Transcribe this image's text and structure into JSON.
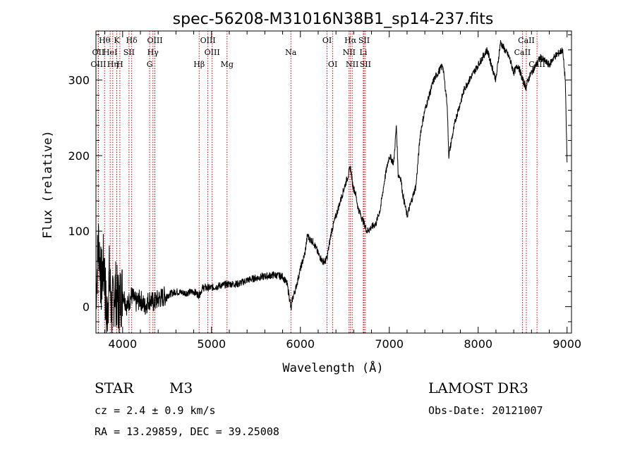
{
  "chart_data": {
    "type": "line",
    "title": "spec-56208-M31016N38B1_sp14-237.fits",
    "xlabel": "Wavelength (Å)",
    "ylabel": "Flux (relative)",
    "xlim": [
      3700,
      9050
    ],
    "ylim": [
      -35,
      365
    ],
    "xticks": [
      4000,
      5000,
      6000,
      7000,
      8000,
      9000
    ],
    "yticks": [
      0,
      100,
      200,
      300
    ],
    "xtick_labels": [
      "4000",
      "5000",
      "6000",
      "7000",
      "8000",
      "9000"
    ],
    "ytick_labels": [
      "0",
      "100",
      "200",
      "300"
    ],
    "spectrum": {
      "x": [
        3700,
        3730,
        3760,
        3790,
        3820,
        3850,
        3880,
        3910,
        3950,
        4000,
        4050,
        4100,
        4150,
        4200,
        4250,
        4300,
        4350,
        4400,
        4500,
        4600,
        4700,
        4800,
        4860,
        4900,
        5000,
        5100,
        5200,
        5300,
        5400,
        5500,
        5600,
        5700,
        5800,
        5850,
        5880,
        5895,
        5910,
        5950,
        6000,
        6050,
        6080,
        6100,
        6150,
        6200,
        6250,
        6280,
        6300,
        6350,
        6400,
        6450,
        6500,
        6540,
        6563,
        6590,
        6620,
        6650,
        6700,
        6750,
        6800,
        6850,
        6900,
        6950,
        7000,
        7050,
        7080,
        7100,
        7130,
        7150,
        7200,
        7250,
        7300,
        7350,
        7400,
        7450,
        7500,
        7550,
        7600,
        7650,
        7670,
        7700,
        7750,
        7800,
        7850,
        7900,
        7950,
        8000,
        8050,
        8100,
        8150,
        8200,
        8250,
        8300,
        8350,
        8400,
        8450,
        8500,
        8540,
        8560,
        8600,
        8650,
        8700,
        8750,
        8800,
        8850,
        8900,
        8950,
        8980,
        9000
      ],
      "y": [
        20,
        90,
        30,
        60,
        -20,
        40,
        -10,
        25,
        5,
        20,
        0,
        15,
        5,
        10,
        0,
        10,
        5,
        10,
        15,
        20,
        18,
        20,
        15,
        25,
        25,
        28,
        30,
        30,
        35,
        38,
        40,
        42,
        40,
        30,
        10,
        -5,
        10,
        25,
        50,
        70,
        95,
        90,
        85,
        70,
        60,
        60,
        65,
        100,
        120,
        140,
        160,
        175,
        185,
        160,
        150,
        130,
        115,
        100,
        105,
        110,
        130,
        170,
        200,
        190,
        240,
        175,
        170,
        150,
        120,
        140,
        160,
        230,
        260,
        280,
        300,
        310,
        320,
        270,
        200,
        220,
        250,
        270,
        290,
        300,
        310,
        320,
        330,
        340,
        320,
        300,
        350,
        340,
        330,
        310,
        320,
        300,
        290,
        300,
        310,
        320,
        330,
        325,
        320,
        330,
        335,
        340,
        300,
        190
      ]
    },
    "spectral_lines": [
      {
        "label": "Hθ",
        "x": 3797,
        "row": 1
      },
      {
        "label": "OII",
        "x": 3727,
        "row": 2
      },
      {
        "label": "OIII",
        "x": 3727,
        "row": 3
      },
      {
        "label": "HeI",
        "x": 3860,
        "row": 2
      },
      {
        "label": "Hη",
        "x": 3889,
        "row": 3
      },
      {
        "label": "K",
        "x": 3934,
        "row": 1
      },
      {
        "label": "H",
        "x": 3969,
        "row": 3
      },
      {
        "label": "SII",
        "x": 4072,
        "row": 2
      },
      {
        "label": "Hδ",
        "x": 4102,
        "row": 1
      },
      {
        "label": "OIII",
        "x": 4363,
        "row": 1
      },
      {
        "label": "Hγ",
        "x": 4341,
        "row": 2
      },
      {
        "label": "G",
        "x": 4304,
        "row": 3
      },
      {
        "label": "Hβ",
        "x": 4861,
        "row": 3
      },
      {
        "label": "OIII",
        "x": 4959,
        "row": 1
      },
      {
        "label": "OIII",
        "x": 5007,
        "row": 2
      },
      {
        "label": "Mg",
        "x": 5175,
        "row": 3
      },
      {
        "label": "Na",
        "x": 5893,
        "row": 2
      },
      {
        "label": "OI",
        "x": 6300,
        "row": 1
      },
      {
        "label": "OI",
        "x": 6364,
        "row": 3
      },
      {
        "label": "Hα",
        "x": 6563,
        "row": 1
      },
      {
        "label": "NII",
        "x": 6548,
        "row": 2
      },
      {
        "label": "NII",
        "x": 6583,
        "row": 3
      },
      {
        "label": "SII",
        "x": 6716,
        "row": 1
      },
      {
        "label": "Li",
        "x": 6708,
        "row": 2
      },
      {
        "label": "SII",
        "x": 6731,
        "row": 3
      },
      {
        "label": "CaII",
        "x": 8498,
        "row": 2
      },
      {
        "label": "CaII",
        "x": 8542,
        "row": 1
      },
      {
        "label": "CaII",
        "x": 8662,
        "row": 3
      }
    ]
  },
  "info": {
    "object_class": "STAR",
    "subclass": "M3",
    "survey": "LAMOST DR3",
    "cz": "cz = 2.4 ± 0.9 km/s",
    "obs_date": "Obs-Date: 20121007",
    "coords": "RA =  13.29859, DEC =  39.25008"
  },
  "colors": {
    "line": "#000000",
    "marker_lines": "#cc0000",
    "background": "#ffffff"
  }
}
